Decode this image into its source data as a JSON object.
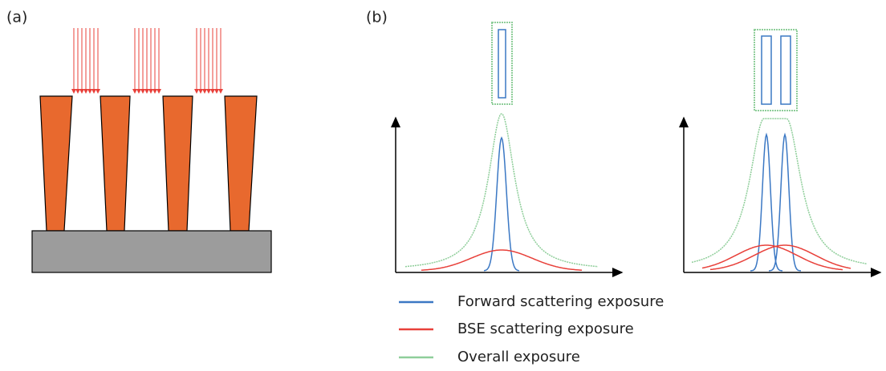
{
  "panels": {
    "a": {
      "label": "(a)"
    },
    "b": {
      "label": "(b)"
    }
  },
  "legend": [
    {
      "label": "Forward scattering exposure"
    },
    {
      "label": "BSE scattering exposure"
    },
    {
      "label": "Overall exposure"
    }
  ]
}
